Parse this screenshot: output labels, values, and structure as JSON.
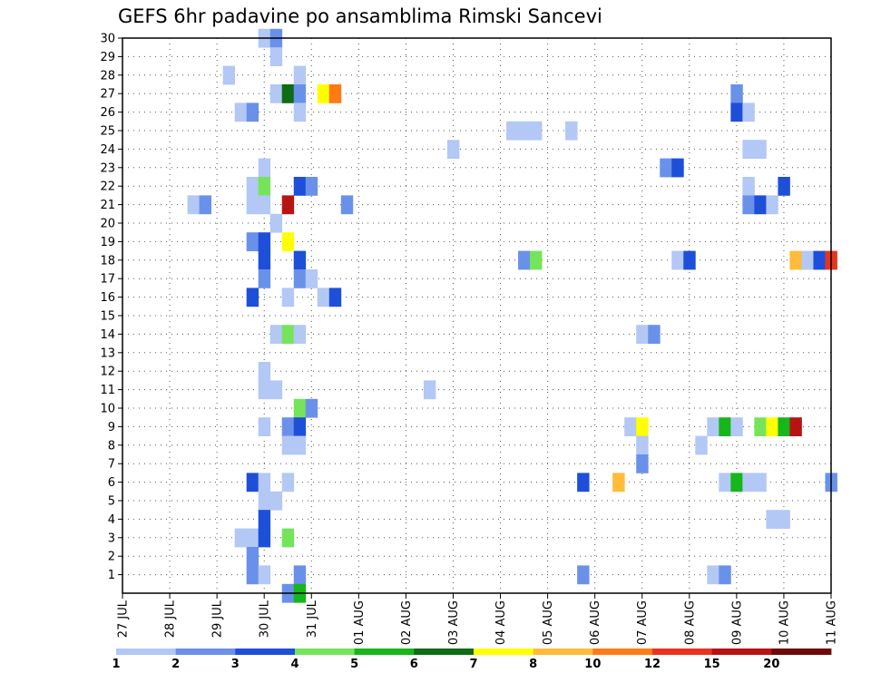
{
  "chart_data": {
    "type": "heatmap",
    "title": "GEFS 6hr padavine po ansamblima Rimski Sancevi",
    "x_labels": [
      "27 JUL",
      "28 JUL",
      "29 JUL",
      "30 JUL",
      "31 JUL",
      "01 AUG",
      "02 AUG",
      "03 AUG",
      "04 AUG",
      "05 AUG",
      "06 AUG",
      "07 AUG",
      "08 AUG",
      "09 AUG",
      "10 AUG",
      "11 AUG"
    ],
    "y_labels": [
      "1",
      "2",
      "3",
      "4",
      "5",
      "6",
      "7",
      "8",
      "9",
      "10",
      "11",
      "12",
      "13",
      "14",
      "15",
      "16",
      "17",
      "18",
      "19",
      "20",
      "21",
      "22",
      "23",
      "24",
      "25",
      "26",
      "27",
      "28",
      "29",
      "30"
    ],
    "x_steps_per_day": 4,
    "xlim_steps": [
      0,
      60
    ],
    "ylim": [
      0,
      30
    ],
    "grid": true,
    "colorbar": {
      "labels": [
        "1",
        "2",
        "3",
        "4",
        "5",
        "6",
        "7",
        "8",
        "10",
        "12",
        "15",
        "20"
      ],
      "colors": [
        "#b3c8f4",
        "#6a91e9",
        "#1e4fd9",
        "#76e45b",
        "#16b61c",
        "#0f6b14",
        "#ffff00",
        "#ffbb3a",
        "#ff7a14",
        "#e6351e",
        "#b81313",
        "#6e0a0a"
      ]
    },
    "cell_format": "[time_step, member, color_index]",
    "cells": [
      [
        12,
        30,
        0
      ],
      [
        13,
        30,
        1
      ],
      [
        13,
        29,
        0
      ],
      [
        9,
        28,
        0
      ],
      [
        15,
        28,
        0
      ],
      [
        13,
        27,
        0
      ],
      [
        14,
        27,
        5
      ],
      [
        15,
        27,
        1
      ],
      [
        17,
        27,
        6
      ],
      [
        18,
        27,
        8
      ],
      [
        52,
        27,
        1
      ],
      [
        10,
        26,
        0
      ],
      [
        11,
        26,
        1
      ],
      [
        15,
        26,
        0
      ],
      [
        52,
        26,
        2
      ],
      [
        53,
        26,
        0
      ],
      [
        33,
        25,
        0
      ],
      [
        34,
        25,
        0
      ],
      [
        35,
        25,
        0
      ],
      [
        38,
        25,
        0
      ],
      [
        28,
        24,
        0
      ],
      [
        53,
        24,
        0
      ],
      [
        54,
        24,
        0
      ],
      [
        12,
        23,
        0
      ],
      [
        46,
        23,
        1
      ],
      [
        47,
        23,
        2
      ],
      [
        11,
        22,
        0
      ],
      [
        12,
        22,
        3
      ],
      [
        15,
        22,
        2
      ],
      [
        16,
        22,
        1
      ],
      [
        53,
        22,
        0
      ],
      [
        56,
        22,
        2
      ],
      [
        6,
        21,
        0
      ],
      [
        7,
        21,
        1
      ],
      [
        11,
        21,
        0
      ],
      [
        12,
        21,
        0
      ],
      [
        14,
        21,
        10
      ],
      [
        19,
        21,
        1
      ],
      [
        53,
        21,
        1
      ],
      [
        54,
        21,
        2
      ],
      [
        55,
        21,
        0
      ],
      [
        13,
        20,
        0
      ],
      [
        11,
        19,
        1
      ],
      [
        12,
        19,
        2
      ],
      [
        14,
        19,
        6
      ],
      [
        12,
        18,
        2
      ],
      [
        15,
        18,
        2
      ],
      [
        34,
        18,
        1
      ],
      [
        35,
        18,
        3
      ],
      [
        47,
        18,
        0
      ],
      [
        48,
        18,
        2
      ],
      [
        57,
        18,
        7
      ],
      [
        58,
        18,
        0
      ],
      [
        59,
        18,
        2
      ],
      [
        60,
        18,
        9
      ],
      [
        12,
        17,
        1
      ],
      [
        15,
        17,
        1
      ],
      [
        16,
        17,
        0
      ],
      [
        11,
        16,
        2
      ],
      [
        14,
        16,
        0
      ],
      [
        17,
        16,
        0
      ],
      [
        18,
        16,
        2
      ],
      [
        13,
        14,
        0
      ],
      [
        14,
        14,
        3
      ],
      [
        15,
        14,
        0
      ],
      [
        44,
        14,
        0
      ],
      [
        45,
        14,
        1
      ],
      [
        12,
        12,
        0
      ],
      [
        12,
        11,
        0
      ],
      [
        13,
        11,
        0
      ],
      [
        26,
        11,
        0
      ],
      [
        15,
        10,
        3
      ],
      [
        16,
        10,
        1
      ],
      [
        12,
        9,
        0
      ],
      [
        14,
        9,
        1
      ],
      [
        15,
        9,
        2
      ],
      [
        43,
        9,
        0
      ],
      [
        44,
        9,
        6
      ],
      [
        50,
        9,
        0
      ],
      [
        51,
        9,
        4
      ],
      [
        52,
        9,
        0
      ],
      [
        54,
        9,
        3
      ],
      [
        55,
        9,
        6
      ],
      [
        56,
        9,
        4
      ],
      [
        57,
        9,
        10
      ],
      [
        14,
        8,
        0
      ],
      [
        15,
        8,
        0
      ],
      [
        44,
        8,
        0
      ],
      [
        49,
        8,
        0
      ],
      [
        44,
        7,
        1
      ],
      [
        11,
        6,
        2
      ],
      [
        12,
        6,
        0
      ],
      [
        14,
        6,
        0
      ],
      [
        39,
        6,
        2
      ],
      [
        42,
        6,
        7
      ],
      [
        51,
        6,
        0
      ],
      [
        52,
        6,
        4
      ],
      [
        53,
        6,
        0
      ],
      [
        54,
        6,
        0
      ],
      [
        60,
        6,
        1
      ],
      [
        12,
        5,
        0
      ],
      [
        13,
        5,
        0
      ],
      [
        12,
        4,
        2
      ],
      [
        55,
        4,
        0
      ],
      [
        56,
        4,
        0
      ],
      [
        10,
        3,
        0
      ],
      [
        11,
        3,
        0
      ],
      [
        12,
        3,
        2
      ],
      [
        14,
        3,
        3
      ],
      [
        11,
        2,
        1
      ],
      [
        11,
        1,
        1
      ],
      [
        12,
        1,
        0
      ],
      [
        15,
        1,
        1
      ],
      [
        39,
        1,
        1
      ],
      [
        50,
        1,
        0
      ],
      [
        51,
        1,
        1
      ],
      [
        14,
        0,
        1
      ],
      [
        15,
        0,
        4
      ]
    ]
  }
}
